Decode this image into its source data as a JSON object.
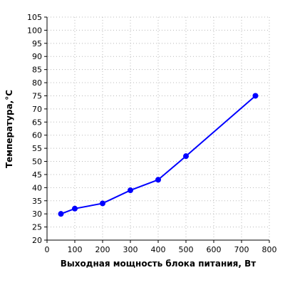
{
  "chart_data": {
    "type": "line",
    "xlabel": "Выходная мощность блока питания, Вт",
    "ylabel": "Температура,°С",
    "xlim": [
      0,
      800
    ],
    "ylim": [
      20,
      105
    ],
    "x_ticks": [
      "0",
      "100",
      "200",
      "300",
      "400",
      "500",
      "600",
      "700",
      "800"
    ],
    "y_ticks": [
      "20",
      "25",
      "30",
      "35",
      "40",
      "45",
      "50",
      "55",
      "60",
      "65",
      "70",
      "75",
      "80",
      "85",
      "90",
      "95",
      "100",
      "105"
    ],
    "grid": true,
    "series": [
      {
        "color": "#0000ff",
        "points": [
          {
            "x": 50,
            "y": 30
          },
          {
            "x": 100,
            "y": 32
          },
          {
            "x": 200,
            "y": 34
          },
          {
            "x": 300,
            "y": 39
          },
          {
            "x": 400,
            "y": 43
          },
          {
            "x": 500,
            "y": 52
          },
          {
            "x": 750,
            "y": 75
          }
        ]
      }
    ]
  }
}
